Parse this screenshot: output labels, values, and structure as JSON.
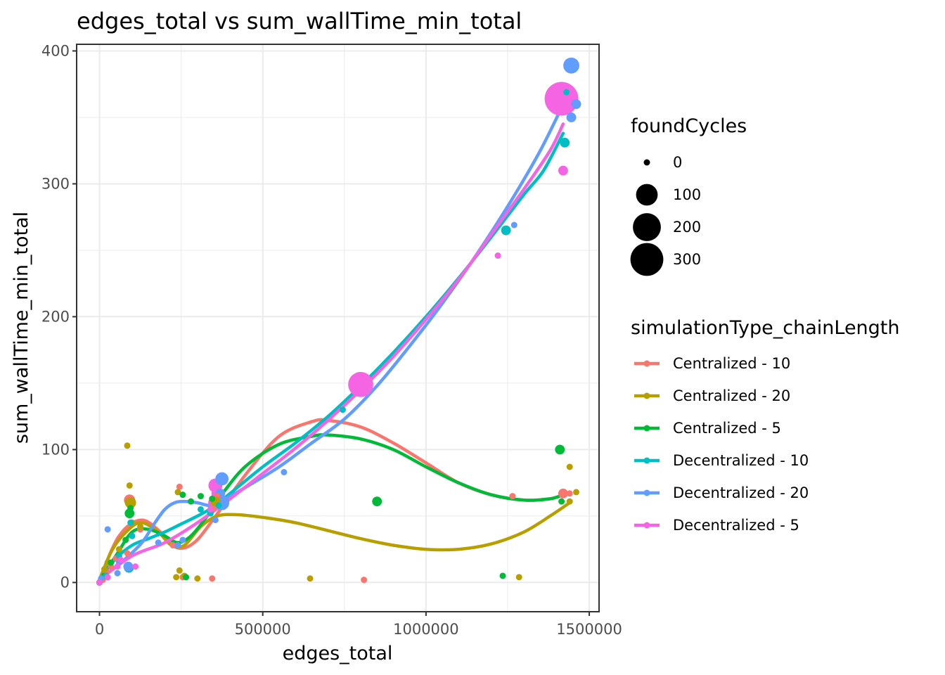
{
  "chart_data": {
    "type": "scatter",
    "title": "edges_total  vs  sum_wallTime_min_total",
    "xlabel": "edges_total",
    "ylabel": "sum_wallTime_min_total",
    "xlim": [
      -70000,
      1530000
    ],
    "ylim": [
      -22,
      405
    ],
    "x_ticks": [
      0,
      500000,
      1000000,
      1500000
    ],
    "x_tick_labels": [
      "0",
      "500000",
      "1000000",
      "1500000"
    ],
    "y_ticks": [
      0,
      100,
      200,
      300,
      400
    ],
    "y_tick_labels": [
      "0",
      "100",
      "200",
      "300",
      "400"
    ],
    "grid": true,
    "legend_position": "right",
    "size_legend": {
      "title": "foundCycles",
      "entries": [
        {
          "label": "0",
          "value": 0
        },
        {
          "label": "100",
          "value": 100
        },
        {
          "label": "200",
          "value": 200
        },
        {
          "label": "300",
          "value": 300
        }
      ]
    },
    "color_legend": {
      "title": "simulationType_chainLength",
      "entries": [
        "Centralized - 10",
        "Centralized - 20",
        "Centralized - 5",
        "Decentralized - 10",
        "Decentralized - 20",
        "Decentralized - 5"
      ]
    },
    "series": [
      {
        "name": "Centralized - 10",
        "color": "#F8766D",
        "points": [
          [
            0,
            0,
            0
          ],
          [
            10000,
            2,
            0
          ],
          [
            20000,
            8,
            0
          ],
          [
            35000,
            12,
            0
          ],
          [
            50000,
            18,
            0
          ],
          [
            85000,
            22,
            0
          ],
          [
            92000,
            62,
            10
          ],
          [
            100000,
            45,
            0
          ],
          [
            125000,
            40,
            0
          ],
          [
            225000,
            28,
            0
          ],
          [
            245000,
            72,
            0
          ],
          [
            255000,
            4,
            0
          ],
          [
            345000,
            3,
            0
          ],
          [
            350000,
            56,
            0
          ],
          [
            360000,
            65,
            0
          ],
          [
            810000,
            2,
            0
          ],
          [
            1265000,
            65,
            0
          ],
          [
            1420000,
            67,
            5
          ],
          [
            1440000,
            67,
            0
          ]
        ],
        "curve": [
          [
            0,
            2
          ],
          [
            60000,
            35
          ],
          [
            130000,
            47
          ],
          [
            200000,
            35
          ],
          [
            240000,
            26
          ],
          [
            290000,
            30
          ],
          [
            350000,
            48
          ],
          [
            450000,
            82
          ],
          [
            550000,
            110
          ],
          [
            650000,
            121
          ],
          [
            700000,
            122
          ],
          [
            800000,
            117
          ],
          [
            900000,
            105
          ],
          [
            1000000,
            90
          ],
          [
            1100000,
            75
          ],
          [
            1200000,
            66
          ],
          [
            1300000,
            62
          ],
          [
            1380000,
            63
          ],
          [
            1420000,
            66
          ]
        ]
      },
      {
        "name": "Centralized - 20",
        "color": "#B79F00",
        "points": [
          [
            0,
            0,
            0
          ],
          [
            15000,
            10,
            0
          ],
          [
            25000,
            15,
            0
          ],
          [
            60000,
            25,
            0
          ],
          [
            85000,
            103,
            0
          ],
          [
            92000,
            73,
            0
          ],
          [
            95000,
            60,
            10
          ],
          [
            100000,
            45,
            0
          ],
          [
            125000,
            42,
            0
          ],
          [
            235000,
            4,
            0
          ],
          [
            240000,
            68,
            0
          ],
          [
            245000,
            9,
            0
          ],
          [
            260000,
            5,
            0
          ],
          [
            300000,
            3,
            0
          ],
          [
            340000,
            55,
            0
          ],
          [
            350000,
            60,
            0
          ],
          [
            360000,
            62,
            0
          ],
          [
            645000,
            3,
            0
          ],
          [
            1285000,
            4,
            0
          ],
          [
            1440000,
            87,
            0
          ],
          [
            1440000,
            61,
            0
          ],
          [
            1460000,
            68,
            0
          ]
        ],
        "curve": [
          [
            0,
            2
          ],
          [
            40000,
            25
          ],
          [
            90000,
            40
          ],
          [
            130000,
            45
          ],
          [
            180000,
            38
          ],
          [
            220000,
            28
          ],
          [
            260000,
            28
          ],
          [
            310000,
            42
          ],
          [
            360000,
            50
          ],
          [
            420000,
            51
          ],
          [
            500000,
            49
          ],
          [
            600000,
            45
          ],
          [
            700000,
            39
          ],
          [
            800000,
            33
          ],
          [
            900000,
            28
          ],
          [
            1000000,
            25
          ],
          [
            1100000,
            25
          ],
          [
            1200000,
            29
          ],
          [
            1300000,
            38
          ],
          [
            1380000,
            50
          ],
          [
            1440000,
            60
          ]
        ]
      },
      {
        "name": "Centralized - 5",
        "color": "#00BA38",
        "points": [
          [
            0,
            0,
            0
          ],
          [
            15000,
            5,
            0
          ],
          [
            35000,
            15,
            0
          ],
          [
            80000,
            32,
            0
          ],
          [
            92000,
            52,
            5
          ],
          [
            95000,
            56,
            0
          ],
          [
            255000,
            66,
            0
          ],
          [
            265000,
            4,
            0
          ],
          [
            280000,
            61,
            0
          ],
          [
            310000,
            65,
            0
          ],
          [
            345000,
            63,
            0
          ],
          [
            850000,
            61,
            5
          ],
          [
            1235000,
            5,
            0
          ],
          [
            1410000,
            100,
            5
          ],
          [
            1415000,
            61,
            0
          ]
        ],
        "curve": [
          [
            0,
            2
          ],
          [
            50000,
            20
          ],
          [
            100000,
            38
          ],
          [
            150000,
            40
          ],
          [
            200000,
            35
          ],
          [
            240000,
            30
          ],
          [
            280000,
            35
          ],
          [
            330000,
            50
          ],
          [
            380000,
            68
          ],
          [
            450000,
            88
          ],
          [
            550000,
            104
          ],
          [
            650000,
            110
          ],
          [
            700000,
            111
          ],
          [
            800000,
            108
          ],
          [
            900000,
            100
          ],
          [
            1000000,
            87
          ],
          [
            1100000,
            75
          ],
          [
            1200000,
            66
          ],
          [
            1300000,
            62
          ],
          [
            1380000,
            63
          ],
          [
            1420000,
            66
          ]
        ]
      },
      {
        "name": "Decentralized - 10",
        "color": "#00BFC4",
        "points": [
          [
            0,
            0,
            0
          ],
          [
            20000,
            5,
            0
          ],
          [
            60000,
            20,
            0
          ],
          [
            90000,
            11,
            5
          ],
          [
            95000,
            45,
            0
          ],
          [
            100000,
            35,
            0
          ],
          [
            310000,
            55,
            0
          ],
          [
            340000,
            52,
            0
          ],
          [
            365000,
            58,
            0
          ],
          [
            745000,
            130,
            0
          ],
          [
            1245000,
            265,
            5
          ],
          [
            1425000,
            331,
            5
          ],
          [
            1430000,
            369,
            0
          ]
        ],
        "curve": [
          [
            0,
            2
          ],
          [
            50000,
            18
          ],
          [
            100000,
            28
          ],
          [
            150000,
            33
          ],
          [
            200000,
            38
          ],
          [
            250000,
            44
          ],
          [
            300000,
            50
          ],
          [
            350000,
            57
          ],
          [
            400000,
            67
          ],
          [
            500000,
            87
          ],
          [
            600000,
            105
          ],
          [
            700000,
            125
          ],
          [
            800000,
            148
          ],
          [
            900000,
            173
          ],
          [
            1000000,
            200
          ],
          [
            1100000,
            229
          ],
          [
            1200000,
            260
          ],
          [
            1300000,
            292
          ],
          [
            1360000,
            310
          ],
          [
            1420000,
            338
          ]
        ]
      },
      {
        "name": "Decentralized - 20",
        "color": "#619CFF",
        "points": [
          [
            0,
            0,
            0
          ],
          [
            5000,
            3,
            0
          ],
          [
            25000,
            40,
            0
          ],
          [
            55000,
            7,
            0
          ],
          [
            60000,
            15,
            0
          ],
          [
            88000,
            12,
            5
          ],
          [
            180000,
            30,
            0
          ],
          [
            240000,
            28,
            0
          ],
          [
            255000,
            32,
            0
          ],
          [
            355000,
            47,
            0
          ],
          [
            360000,
            65,
            10
          ],
          [
            370000,
            67,
            5
          ],
          [
            375000,
            78,
            20
          ],
          [
            375000,
            60,
            30
          ],
          [
            565000,
            83,
            0
          ],
          [
            1270000,
            269,
            0
          ],
          [
            1445000,
            350,
            5
          ],
          [
            1445000,
            389,
            40
          ],
          [
            1460000,
            360,
            5
          ]
        ],
        "curve": [
          [
            0,
            2
          ],
          [
            30000,
            8
          ],
          [
            80000,
            18
          ],
          [
            130000,
            30
          ],
          [
            170000,
            45
          ],
          [
            200000,
            55
          ],
          [
            230000,
            60
          ],
          [
            260000,
            61
          ],
          [
            300000,
            60
          ],
          [
            340000,
            58
          ],
          [
            380000,
            62
          ],
          [
            450000,
            72
          ],
          [
            550000,
            87
          ],
          [
            650000,
            105
          ],
          [
            750000,
            123
          ],
          [
            850000,
            148
          ],
          [
            950000,
            178
          ],
          [
            1050000,
            210
          ],
          [
            1150000,
            245
          ],
          [
            1250000,
            283
          ],
          [
            1350000,
            325
          ],
          [
            1440000,
            370
          ]
        ]
      },
      {
        "name": "Decentralized - 5",
        "color": "#F564E3",
        "points": [
          [
            0,
            0,
            0
          ],
          [
            25000,
            4,
            0
          ],
          [
            55000,
            12,
            0
          ],
          [
            65000,
            17,
            0
          ],
          [
            110000,
            12,
            0
          ],
          [
            340000,
            55,
            0
          ],
          [
            350000,
            60,
            10
          ],
          [
            355000,
            73,
            25
          ],
          [
            360000,
            67,
            10
          ],
          [
            800000,
            149,
            150
          ],
          [
            1220000,
            246,
            0
          ],
          [
            1415000,
            364,
            320
          ],
          [
            1420000,
            310,
            5
          ]
        ],
        "curve": [
          [
            0,
            2
          ],
          [
            100000,
            20
          ],
          [
            200000,
            30
          ],
          [
            300000,
            45
          ],
          [
            400000,
            63
          ],
          [
            500000,
            82
          ],
          [
            600000,
            101
          ],
          [
            700000,
            122
          ],
          [
            800000,
            145
          ],
          [
            900000,
            170
          ],
          [
            1000000,
            198
          ],
          [
            1100000,
            228
          ],
          [
            1200000,
            262
          ],
          [
            1300000,
            296
          ],
          [
            1380000,
            325
          ],
          [
            1420000,
            345
          ]
        ]
      }
    ]
  }
}
